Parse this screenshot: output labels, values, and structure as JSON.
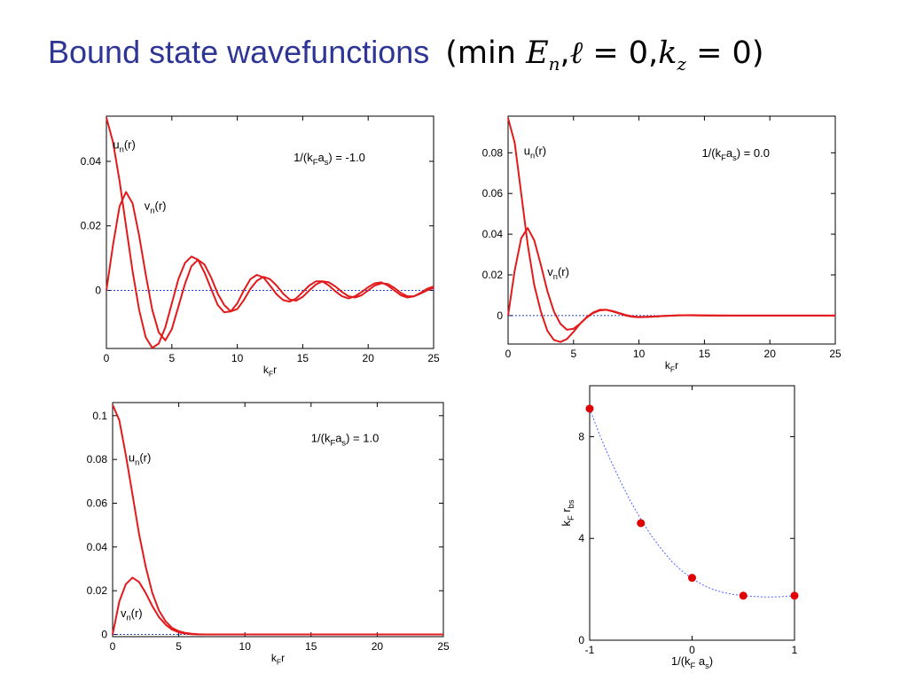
{
  "title": {
    "text": "Bound state wavefunctions",
    "math_open": "(min ",
    "math_E": "E",
    "math_n": "n",
    "math_sep1": ",",
    "math_ell": "ℓ",
    "math_eq1": " = 0,",
    "math_k": "k",
    "math_z": "z",
    "math_eq2": " = 0)"
  },
  "colors": {
    "curve": "#e31a1c",
    "zero_line": "#1f3fd6",
    "marker": "#e00000",
    "fit": "#4a63ff",
    "title": "#2e3595"
  },
  "chart_data": [
    {
      "type": "line",
      "annotation": {
        "main": "1/(k",
        "sub1": "F",
        "mid": "a",
        "sub2": "s",
        "end": ") = -1.0"
      },
      "xlabel": {
        "main": "k",
        "sub": "F",
        "end": "r"
      },
      "xlim": [
        0,
        25
      ],
      "ylim": [
        -0.018,
        0.054
      ],
      "xticks": [
        0,
        5,
        10,
        15,
        20,
        25
      ],
      "yticks": [
        0,
        0.02,
        0.04
      ],
      "ytick_labels": [
        "0",
        "0.02",
        "0.04"
      ],
      "series": [
        {
          "name": "u_n(r)",
          "label": {
            "main": "u",
            "sub": "n",
            "end": "(r)"
          },
          "x": [
            0,
            0.5,
            1,
            1.5,
            2,
            2.5,
            3,
            3.5,
            4,
            4.5,
            5,
            5.5,
            6,
            6.5,
            7,
            7.5,
            8,
            8.5,
            9,
            9.5,
            10,
            10.5,
            11,
            11.5,
            12,
            12.5,
            13,
            13.5,
            14,
            14.5,
            15,
            15.5,
            16,
            16.5,
            17,
            17.5,
            18,
            18.5,
            19,
            19.5,
            20,
            20.5,
            21,
            21.5,
            22,
            22.5,
            23,
            23.5,
            24,
            24.5,
            25
          ],
          "y": [
            0.0535,
            0.046,
            0.034,
            0.02,
            0.006,
            -0.006,
            -0.0145,
            -0.0178,
            -0.0165,
            -0.0115,
            -0.004,
            0.0035,
            0.0085,
            0.0105,
            0.0095,
            0.0055,
            0.0005,
            -0.0045,
            -0.0068,
            -0.0065,
            -0.004,
            0.0,
            0.0035,
            0.0048,
            0.004,
            0.0015,
            -0.0012,
            -0.003,
            -0.0035,
            -0.0025,
            -0.0005,
            0.0015,
            0.0028,
            0.0028,
            0.0015,
            -0.0003,
            -0.0018,
            -0.0025,
            -0.0018,
            -0.0005,
            0.001,
            0.0022,
            0.0025,
            0.0015,
            0.0,
            -0.0015,
            -0.0022,
            -0.0018,
            -0.0008,
            0.0005,
            0.0012
          ]
        },
        {
          "name": "v_n(r)",
          "label": {
            "main": "v",
            "sub": "n",
            "end": "(r)"
          },
          "x": [
            0,
            0.5,
            1,
            1.5,
            2,
            2.5,
            3,
            3.5,
            4,
            4.5,
            5,
            5.5,
            6,
            6.5,
            7,
            7.5,
            8,
            8.5,
            9,
            9.5,
            10,
            10.5,
            11,
            11.5,
            12,
            12.5,
            13,
            13.5,
            14,
            14.5,
            15,
            15.5,
            16,
            16.5,
            17,
            17.5,
            18,
            18.5,
            19,
            19.5,
            20,
            20.5,
            21,
            21.5,
            22,
            22.5,
            23,
            23.5,
            24,
            24.5,
            25
          ],
          "y": [
            0.0,
            0.014,
            0.026,
            0.0305,
            0.027,
            0.017,
            0.005,
            -0.006,
            -0.013,
            -0.0155,
            -0.012,
            -0.005,
            0.002,
            0.0075,
            0.0095,
            0.008,
            0.004,
            -0.001,
            -0.0045,
            -0.0065,
            -0.0058,
            -0.003,
            0.0005,
            0.003,
            0.0042,
            0.0035,
            0.0015,
            -0.001,
            -0.0028,
            -0.0032,
            -0.002,
            0.0,
            0.0018,
            0.0028,
            0.0025,
            0.0012,
            -0.0005,
            -0.0018,
            -0.0022,
            -0.0015,
            0.0,
            0.0015,
            0.0022,
            0.002,
            0.0008,
            -0.0008,
            -0.0018,
            -0.0018,
            -0.001,
            0.0,
            0.0008
          ]
        }
      ]
    },
    {
      "type": "line",
      "annotation": {
        "main": "1/(k",
        "sub1": "F",
        "mid": "a",
        "sub2": "s",
        "end": ") = 0.0"
      },
      "xlabel": {
        "main": "k",
        "sub": "F",
        "end": "r"
      },
      "xlim": [
        0,
        25
      ],
      "ylim": [
        -0.014,
        0.098
      ],
      "xticks": [
        0,
        5,
        10,
        15,
        20,
        25
      ],
      "yticks": [
        0,
        0.02,
        0.04,
        0.06,
        0.08
      ],
      "ytick_labels": [
        "0",
        "0.02",
        "0.04",
        "0.06",
        "0.08"
      ],
      "series": [
        {
          "name": "u_n(r)",
          "label": {
            "main": "u",
            "sub": "n",
            "end": "(r)"
          },
          "x": [
            0,
            0.5,
            1,
            1.5,
            2,
            2.5,
            3,
            3.5,
            4,
            4.5,
            5,
            5.5,
            6,
            6.5,
            7,
            7.5,
            8,
            8.5,
            9,
            9.5,
            10,
            11,
            12,
            13,
            14,
            15,
            17,
            20,
            25
          ],
          "y": [
            0.097,
            0.085,
            0.06,
            0.035,
            0.015,
            0.002,
            -0.0075,
            -0.012,
            -0.013,
            -0.0115,
            -0.008,
            -0.004,
            -0.0008,
            0.0015,
            0.0028,
            0.0028,
            0.002,
            0.001,
            0.0,
            -0.0006,
            -0.0008,
            -0.0006,
            -0.0002,
            0.0001,
            0.0002,
            0.0001,
            0.0,
            0.0,
            0.0
          ]
        },
        {
          "name": "v_n(r)",
          "label": {
            "main": "v",
            "sub": "n",
            "end": "(r)"
          },
          "x": [
            0,
            0.5,
            1,
            1.5,
            2,
            2.5,
            3,
            3.5,
            4,
            4.5,
            5,
            5.5,
            6,
            6.5,
            7,
            7.5,
            8,
            8.5,
            9,
            9.5,
            10,
            11,
            12,
            13,
            14,
            15,
            17,
            20,
            25
          ],
          "y": [
            0.0,
            0.022,
            0.038,
            0.043,
            0.037,
            0.025,
            0.012,
            0.002,
            -0.004,
            -0.007,
            -0.0065,
            -0.004,
            -0.001,
            0.0012,
            0.0025,
            0.0028,
            0.0022,
            0.0012,
            0.0003,
            -0.0004,
            -0.0007,
            -0.0005,
            -0.0002,
            0.0001,
            0.0001,
            0.0,
            0.0,
            0.0,
            0.0
          ]
        }
      ]
    },
    {
      "type": "line",
      "annotation": {
        "main": "1/(k",
        "sub1": "F",
        "mid": "a",
        "sub2": "s",
        "end": ") = 1.0"
      },
      "xlabel": {
        "main": "k",
        "sub": "F",
        "end": "r"
      },
      "xlim": [
        0,
        25
      ],
      "ylim": [
        -0.001,
        0.106
      ],
      "xticks": [
        0,
        5,
        10,
        15,
        20,
        25
      ],
      "yticks": [
        0,
        0.02,
        0.04,
        0.06,
        0.08,
        0.1
      ],
      "ytick_labels": [
        "0",
        "0.02",
        "0.04",
        "0.06",
        "0.08",
        "0.1"
      ],
      "series": [
        {
          "name": "u_n(r)",
          "label": {
            "main": "u",
            "sub": "n",
            "end": "(r)"
          },
          "x": [
            0,
            0.5,
            1,
            1.5,
            2,
            2.5,
            3,
            3.5,
            4,
            4.5,
            5,
            5.5,
            6,
            6.5,
            7,
            8,
            9,
            10,
            12,
            15,
            20,
            25
          ],
          "y": [
            0.105,
            0.098,
            0.082,
            0.064,
            0.046,
            0.031,
            0.019,
            0.011,
            0.006,
            0.003,
            0.0015,
            0.0007,
            0.0003,
            0.0001,
            0.0,
            0.0,
            0.0,
            0.0,
            0.0,
            0.0,
            0.0,
            0.0
          ]
        },
        {
          "name": "v_n(r)",
          "label": {
            "main": "v",
            "sub": "n",
            "end": "(r)"
          },
          "x": [
            0,
            0.5,
            1,
            1.5,
            2,
            2.5,
            3,
            3.5,
            4,
            4.5,
            5,
            5.5,
            6,
            6.5,
            7,
            8,
            9,
            10,
            12,
            15,
            20,
            25
          ],
          "y": [
            0.0,
            0.015,
            0.023,
            0.026,
            0.024,
            0.019,
            0.013,
            0.008,
            0.0045,
            0.0022,
            0.001,
            0.0004,
            0.0001,
            0.0,
            0.0,
            0.0,
            0.0,
            0.0,
            0.0,
            0.0,
            0.0,
            0.0
          ]
        }
      ]
    },
    {
      "type": "scatter",
      "xlabel": {
        "main": "1/(k",
        "sub1": "F",
        "mid": " a",
        "sub2": "s",
        "end": ")"
      },
      "ylabel": {
        "main": "k",
        "sub1": "F",
        "mid": " r",
        "sub2": "bs"
      },
      "xlim": [
        -1,
        1
      ],
      "ylim": [
        0,
        10
      ],
      "xticks": [
        -1,
        0,
        1
      ],
      "yticks": [
        0,
        4,
        8
      ],
      "xtick_labels": [
        "-1",
        "0",
        "1"
      ],
      "ytick_labels": [
        "0",
        "4",
        "8"
      ],
      "points": {
        "x": [
          -1,
          -0.5,
          0,
          0.5,
          1
        ],
        "y": [
          9.1,
          4.6,
          2.45,
          1.75,
          1.75
        ]
      },
      "fit": {
        "x": [
          -1,
          -0.9,
          -0.8,
          -0.7,
          -0.6,
          -0.5,
          -0.4,
          -0.3,
          -0.2,
          -0.1,
          0,
          0.1,
          0.2,
          0.3,
          0.4,
          0.5,
          0.6,
          0.7,
          0.8,
          0.9,
          1
        ],
        "y": [
          9.1,
          8.05,
          7.1,
          6.25,
          5.45,
          4.75,
          4.12,
          3.58,
          3.1,
          2.72,
          2.42,
          2.18,
          2.0,
          1.88,
          1.8,
          1.75,
          1.72,
          1.7,
          1.7,
          1.72,
          1.75
        ]
      }
    }
  ]
}
